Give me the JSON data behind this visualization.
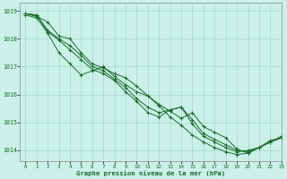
{
  "title": "Graphe pression niveau de la mer (hPa)",
  "background_color": "#caf0e8",
  "grid_color": "#aaddcc",
  "line_color": "#1a6b2a",
  "xlim": [
    -0.5,
    23
  ],
  "ylim": [
    1013.6,
    1019.3
  ],
  "yticks": [
    1014,
    1015,
    1016,
    1017,
    1018,
    1019
  ],
  "xticks": [
    0,
    1,
    2,
    3,
    4,
    5,
    6,
    7,
    8,
    9,
    10,
    11,
    12,
    13,
    14,
    15,
    16,
    17,
    18,
    19,
    20,
    21,
    22,
    23
  ],
  "series": [
    [
      1018.9,
      1018.8,
      1018.6,
      1018.1,
      1018.0,
      1017.5,
      1017.1,
      1016.95,
      1016.75,
      1016.6,
      1016.3,
      1015.95,
      1015.65,
      1015.4,
      1015.15,
      1015.35,
      1014.85,
      1014.65,
      1014.45,
      1014.05,
      1013.9,
      1014.1,
      1014.35,
      1014.45
    ],
    [
      1018.9,
      1018.85,
      1018.3,
      1018.0,
      1017.75,
      1017.4,
      1017.0,
      1016.85,
      1016.55,
      1016.25,
      1015.85,
      1015.55,
      1015.35,
      1015.45,
      1015.55,
      1015.1,
      1014.6,
      1014.4,
      1014.2,
      1014.0,
      1013.95,
      1014.1,
      1014.3,
      1014.45
    ],
    [
      1018.9,
      1018.85,
      1018.25,
      1017.95,
      1017.6,
      1017.25,
      1016.9,
      1016.75,
      1016.5,
      1016.1,
      1015.75,
      1015.35,
      1015.2,
      1015.45,
      1015.55,
      1014.95,
      1014.5,
      1014.3,
      1014.1,
      1013.95,
      1014.0,
      1014.1,
      1014.3,
      1014.5
    ],
    [
      1018.85,
      1018.75,
      1018.2,
      1017.5,
      1017.1,
      1016.7,
      1016.85,
      1017.0,
      1016.65,
      1016.35,
      1016.1,
      1015.95,
      1015.6,
      1015.2,
      1014.9,
      1014.55,
      1014.3,
      1014.1,
      1013.95,
      1013.85,
      1013.9,
      1014.1,
      1014.3,
      1014.45
    ]
  ]
}
